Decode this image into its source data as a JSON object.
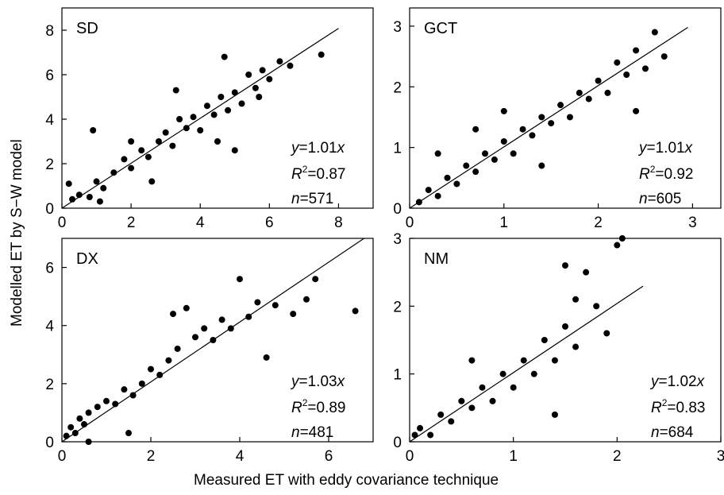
{
  "figure": {
    "ylabel": "Modelled ET by S−W model",
    "xlabel": "Measured ET with eddy covariance technique"
  },
  "chart_data": [
    {
      "id": "SD",
      "type": "scatter",
      "panel_label": "SD",
      "xlim": [
        0,
        9
      ],
      "ylim": [
        0,
        9
      ],
      "xticks": [
        "0",
        "2",
        "4",
        "6",
        "8"
      ],
      "xtick_values": [
        0,
        2,
        4,
        6,
        8
      ],
      "yticks": [
        "0",
        "2",
        "4",
        "6",
        "8"
      ],
      "ytick_values": [
        0,
        2,
        4,
        6,
        8
      ],
      "fit": {
        "slope": 1.01,
        "x_range": [
          0,
          8.0
        ],
        "equation": "y=1.01x",
        "r2": "0.87",
        "n": "571"
      },
      "n_points": 571,
      "points": [
        [
          0.3,
          0.4
        ],
        [
          0.5,
          0.6
        ],
        [
          0.8,
          0.5
        ],
        [
          1.0,
          1.2
        ],
        [
          1.2,
          0.9
        ],
        [
          1.5,
          1.6
        ],
        [
          1.8,
          2.2
        ],
        [
          2.0,
          1.8
        ],
        [
          2.3,
          2.6
        ],
        [
          2.5,
          2.3
        ],
        [
          2.8,
          3.0
        ],
        [
          3.0,
          3.4
        ],
        [
          3.2,
          2.8
        ],
        [
          3.4,
          4.0
        ],
        [
          3.6,
          3.6
        ],
        [
          3.8,
          4.1
        ],
        [
          4.0,
          3.5
        ],
        [
          4.2,
          4.6
        ],
        [
          4.4,
          4.2
        ],
        [
          4.6,
          5.0
        ],
        [
          4.8,
          4.4
        ],
        [
          5.0,
          5.2
        ],
        [
          5.2,
          4.7
        ],
        [
          5.4,
          6.0
        ],
        [
          5.6,
          5.4
        ],
        [
          5.8,
          6.2
        ],
        [
          6.0,
          5.8
        ],
        [
          6.3,
          6.6
        ],
        [
          6.6,
          6.4
        ],
        [
          7.5,
          6.9
        ],
        [
          4.7,
          6.8
        ],
        [
          0.9,
          3.5
        ],
        [
          2.6,
          1.2
        ],
        [
          5.0,
          2.6
        ],
        [
          3.3,
          5.3
        ],
        [
          1.1,
          0.3
        ],
        [
          0.2,
          1.1
        ],
        [
          2.0,
          3.0
        ],
        [
          4.5,
          3.0
        ],
        [
          5.7,
          5.0
        ]
      ]
    },
    {
      "id": "GCT",
      "type": "scatter",
      "panel_label": "GCT",
      "xlim": [
        0,
        3.3
      ],
      "ylim": [
        0,
        3.3
      ],
      "xticks": [
        "0",
        "1",
        "2",
        "3"
      ],
      "xtick_values": [
        0,
        1,
        2,
        3
      ],
      "yticks": [
        "0",
        "1",
        "2",
        "3"
      ],
      "ytick_values": [
        0,
        1,
        2,
        3
      ],
      "fit": {
        "slope": 1.01,
        "x_range": [
          0,
          2.95
        ],
        "equation": "y=1.01x",
        "r2": "0.92",
        "n": "605"
      },
      "n_points": 605,
      "points": [
        [
          0.1,
          0.1
        ],
        [
          0.2,
          0.3
        ],
        [
          0.3,
          0.2
        ],
        [
          0.4,
          0.5
        ],
        [
          0.5,
          0.4
        ],
        [
          0.6,
          0.7
        ],
        [
          0.7,
          0.6
        ],
        [
          0.8,
          0.9
        ],
        [
          0.9,
          0.8
        ],
        [
          1.0,
          1.1
        ],
        [
          1.1,
          0.9
        ],
        [
          1.2,
          1.3
        ],
        [
          1.3,
          1.2
        ],
        [
          1.4,
          1.5
        ],
        [
          1.5,
          1.4
        ],
        [
          1.6,
          1.7
        ],
        [
          1.7,
          1.5
        ],
        [
          1.8,
          1.9
        ],
        [
          1.9,
          1.8
        ],
        [
          2.0,
          2.1
        ],
        [
          2.1,
          1.9
        ],
        [
          2.2,
          2.4
        ],
        [
          2.3,
          2.2
        ],
        [
          2.4,
          2.6
        ],
        [
          2.5,
          2.3
        ],
        [
          2.6,
          2.9
        ],
        [
          2.7,
          2.5
        ],
        [
          1.4,
          0.7
        ],
        [
          0.7,
          1.3
        ],
        [
          1.0,
          1.6
        ],
        [
          2.4,
          1.6
        ],
        [
          0.3,
          0.9
        ]
      ]
    },
    {
      "id": "DX",
      "type": "scatter",
      "panel_label": "DX",
      "xlim": [
        0,
        7
      ],
      "ylim": [
        0,
        7
      ],
      "xticks": [
        "0",
        "2",
        "4",
        "6"
      ],
      "xtick_values": [
        0,
        2,
        4,
        6
      ],
      "yticks": [
        "0",
        "2",
        "4",
        "6"
      ],
      "ytick_values": [
        0,
        2,
        4,
        6
      ],
      "fit": {
        "slope": 1.03,
        "x_range": [
          0,
          6.8
        ],
        "equation": "y=1.03x",
        "r2": "0.89",
        "n": "481"
      },
      "n_points": 481,
      "points": [
        [
          0.1,
          0.2
        ],
        [
          0.2,
          0.5
        ],
        [
          0.3,
          0.3
        ],
        [
          0.4,
          0.8
        ],
        [
          0.5,
          0.6
        ],
        [
          0.6,
          1.0
        ],
        [
          0.8,
          1.2
        ],
        [
          1.0,
          1.4
        ],
        [
          1.2,
          1.3
        ],
        [
          1.4,
          1.8
        ],
        [
          1.6,
          1.6
        ],
        [
          1.8,
          2.0
        ],
        [
          2.0,
          2.5
        ],
        [
          2.2,
          2.3
        ],
        [
          2.4,
          2.8
        ],
        [
          2.6,
          3.2
        ],
        [
          2.8,
          4.6
        ],
        [
          3.0,
          3.6
        ],
        [
          3.2,
          3.9
        ],
        [
          3.4,
          3.5
        ],
        [
          3.6,
          4.2
        ],
        [
          3.8,
          3.9
        ],
        [
          4.0,
          5.6
        ],
        [
          4.2,
          4.3
        ],
        [
          4.4,
          4.8
        ],
        [
          4.6,
          2.9
        ],
        [
          4.8,
          4.7
        ],
        [
          5.5,
          4.9
        ],
        [
          5.7,
          5.6
        ],
        [
          6.6,
          4.5
        ],
        [
          1.5,
          0.3
        ],
        [
          0.6,
          0.0
        ],
        [
          5.2,
          4.4
        ],
        [
          2.5,
          4.4
        ]
      ]
    },
    {
      "id": "NM",
      "type": "scatter",
      "panel_label": "NM",
      "xlim": [
        0,
        3
      ],
      "ylim": [
        0,
        3
      ],
      "xticks": [
        "0",
        "1",
        "2",
        "3"
      ],
      "xtick_values": [
        0,
        1,
        2,
        3
      ],
      "yticks": [
        "0",
        "1",
        "2",
        "3"
      ],
      "ytick_values": [
        0,
        1,
        2,
        3
      ],
      "fit": {
        "slope": 1.02,
        "x_range": [
          0,
          2.25
        ],
        "equation": "y=1.02x",
        "r2": "0.83",
        "n": "684"
      },
      "n_points": 684,
      "points": [
        [
          0.05,
          0.1
        ],
        [
          0.1,
          0.2
        ],
        [
          0.2,
          0.1
        ],
        [
          0.3,
          0.4
        ],
        [
          0.4,
          0.3
        ],
        [
          0.5,
          0.6
        ],
        [
          0.6,
          0.5
        ],
        [
          0.7,
          0.8
        ],
        [
          0.8,
          0.6
        ],
        [
          0.9,
          1.0
        ],
        [
          1.0,
          0.8
        ],
        [
          1.1,
          1.2
        ],
        [
          1.2,
          1.0
        ],
        [
          1.3,
          1.5
        ],
        [
          1.4,
          1.2
        ],
        [
          1.5,
          1.7
        ],
        [
          1.6,
          1.4
        ],
        [
          1.7,
          2.5
        ],
        [
          1.8,
          2.0
        ],
        [
          1.9,
          1.6
        ],
        [
          2.0,
          2.9
        ],
        [
          2.05,
          3.0
        ],
        [
          1.5,
          2.6
        ],
        [
          1.4,
          0.4
        ],
        [
          0.6,
          1.2
        ],
        [
          1.6,
          2.1
        ]
      ]
    }
  ]
}
